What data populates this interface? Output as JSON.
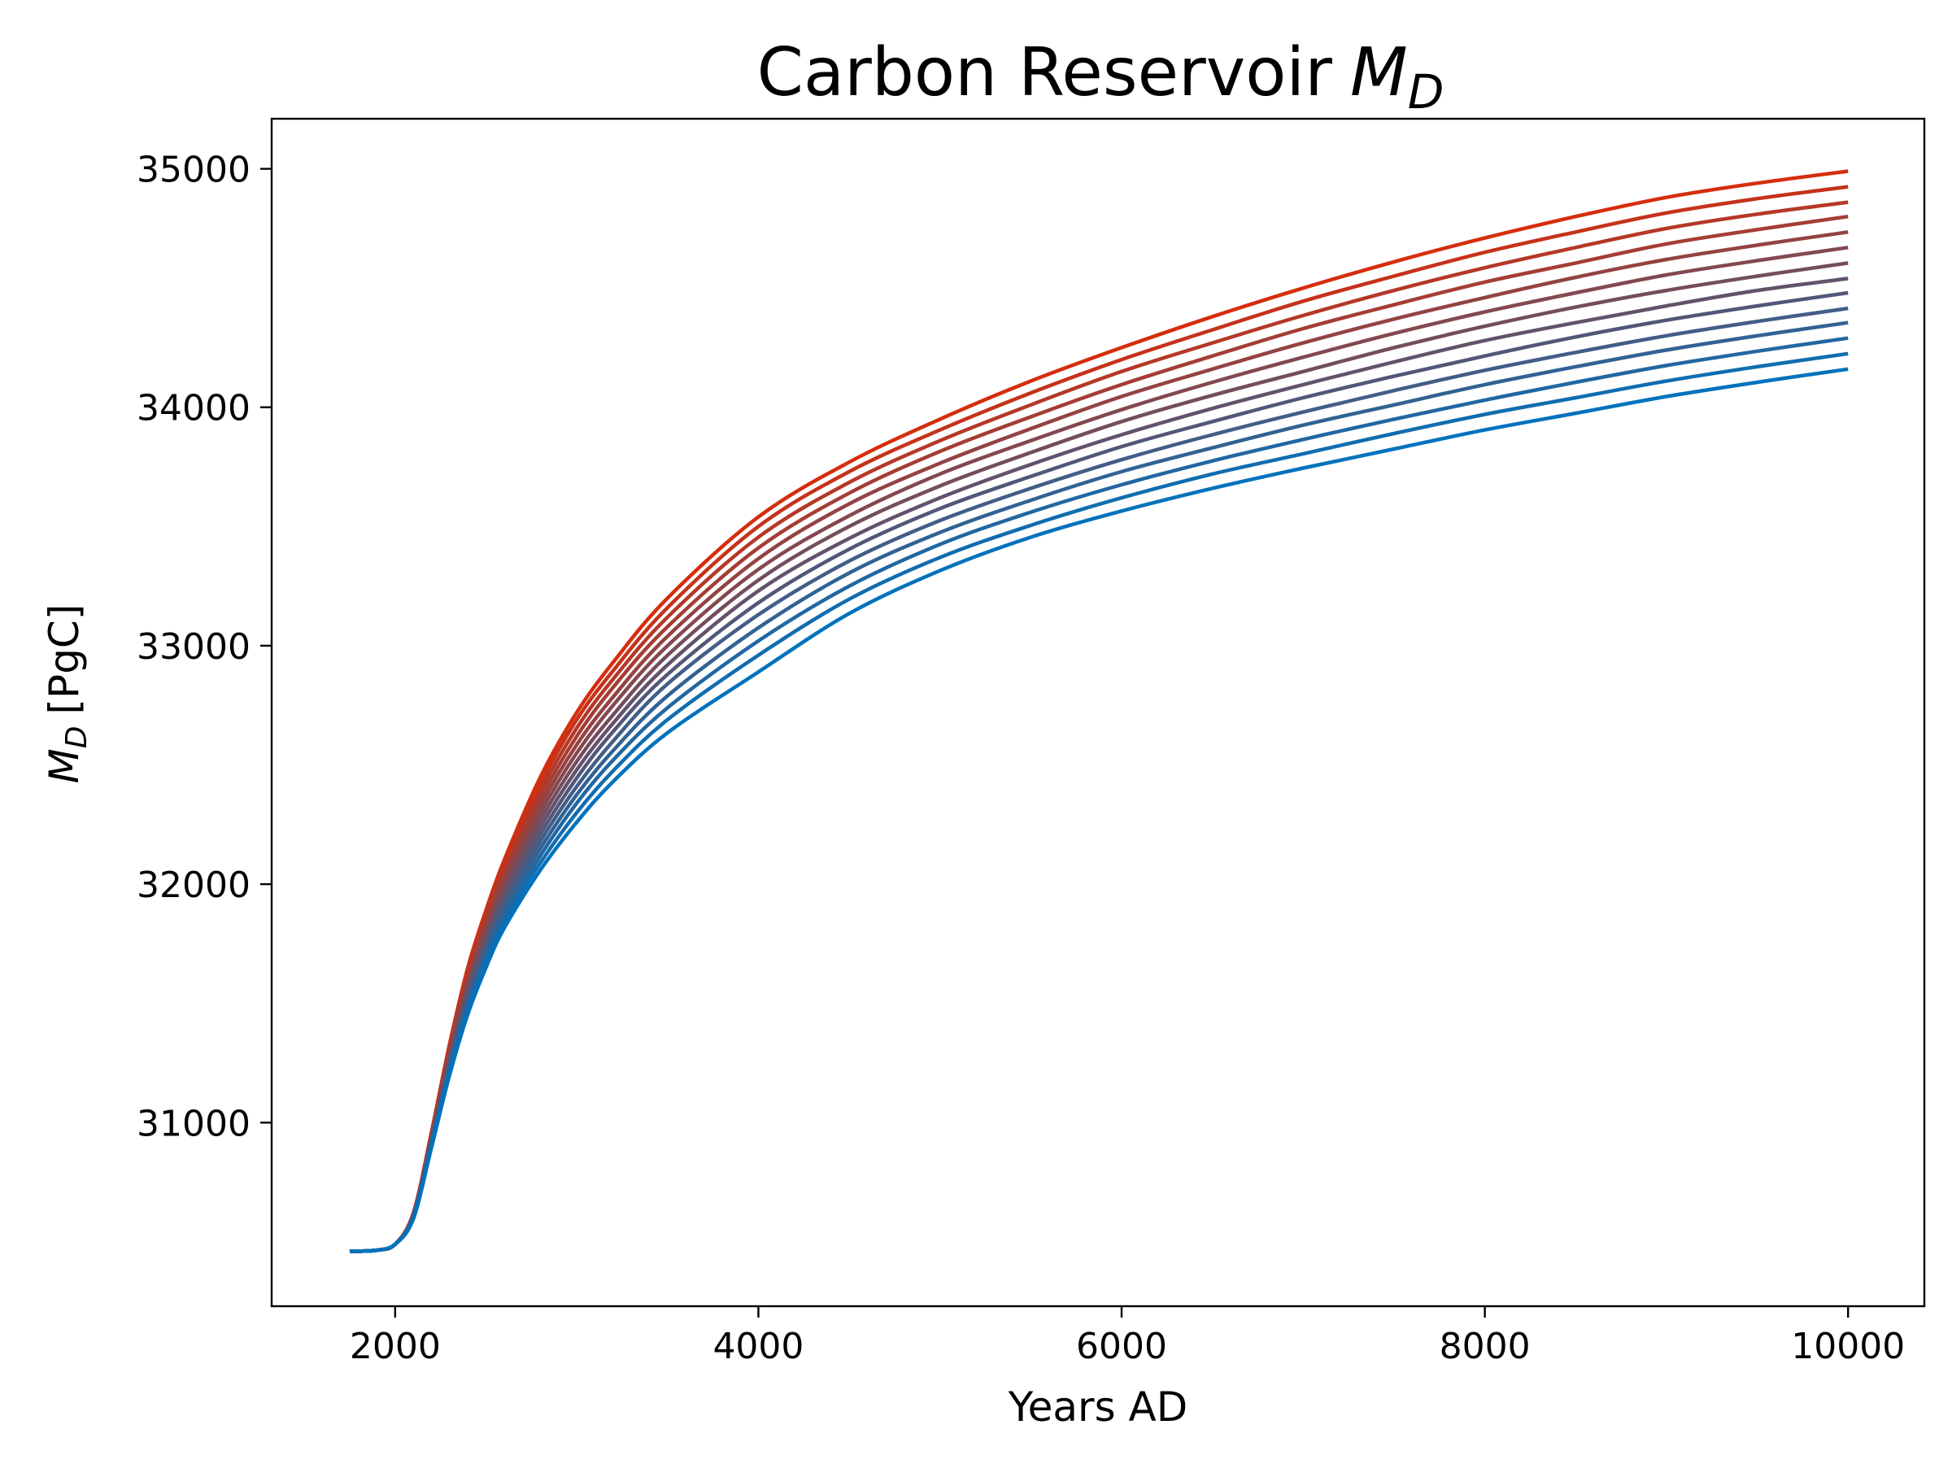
{
  "chart_data": {
    "type": "line",
    "title": "Carbon Reservoir",
    "title_symbol": "M",
    "title_symbol_sub": "D",
    "xlabel": "Years AD",
    "ylabel_symbol": "M",
    "ylabel_symbol_sub": "D",
    "ylabel_unit": "[PgC]",
    "xlim": [
      1320,
      10420
    ],
    "ylim": [
      30230,
      35210
    ],
    "xticks": [
      2000,
      4000,
      6000,
      8000,
      10000
    ],
    "xtick_labels": [
      "2000",
      "4000",
      "6000",
      "8000",
      "10000"
    ],
    "yticks": [
      31000,
      32000,
      33000,
      34000,
      35000
    ],
    "ytick_labels": [
      "31000",
      "32000",
      "33000",
      "34000",
      "35000"
    ],
    "grid": false,
    "legend": "none",
    "colors": {
      "start": "#d62d0c",
      "end": "#0072bd"
    },
    "x": [
      1750,
      1900,
      2000,
      2100,
      2200,
      2300,
      2400,
      2500,
      2600,
      2800,
      3000,
      3200,
      3500,
      4000,
      4500,
      5000,
      5500,
      6000,
      6500,
      7000,
      7500,
      8000,
      8500,
      9000,
      9500,
      10000
    ],
    "series": [
      {
        "values": [
          30460,
          30465,
          30490,
          30620,
          30960,
          31330,
          31650,
          31890,
          32100,
          32450,
          32720,
          32930,
          33200,
          33540,
          33770,
          33950,
          34110,
          34250,
          34380,
          34500,
          34610,
          34710,
          34800,
          34880,
          34940,
          34990
        ]
      },
      {
        "values": [
          30460,
          30465,
          30490,
          30620,
          30955,
          31320,
          31635,
          31875,
          32080,
          32420,
          32690,
          32895,
          33160,
          33500,
          33730,
          33905,
          34060,
          34200,
          34325,
          34445,
          34550,
          34650,
          34735,
          34815,
          34875,
          34925
        ]
      },
      {
        "values": [
          30460,
          30465,
          30490,
          30618,
          30950,
          31310,
          31620,
          31860,
          32060,
          32390,
          32655,
          32860,
          33120,
          33455,
          33685,
          33860,
          34010,
          34150,
          34270,
          34385,
          34490,
          34585,
          34670,
          34750,
          34810,
          34860
        ]
      },
      {
        "values": [
          30460,
          30465,
          30490,
          30616,
          30945,
          31300,
          31605,
          31840,
          32040,
          32360,
          32620,
          32825,
          33080,
          33410,
          33640,
          33815,
          33960,
          34095,
          34215,
          34330,
          34430,
          34525,
          34605,
          34685,
          34745,
          34800
        ]
      },
      {
        "values": [
          30460,
          30465,
          30490,
          30614,
          30940,
          31290,
          31590,
          31820,
          32015,
          32330,
          32585,
          32785,
          33040,
          33365,
          33595,
          33765,
          33910,
          34045,
          34160,
          34270,
          34370,
          34460,
          34545,
          34620,
          34680,
          34735
        ]
      },
      {
        "values": [
          30460,
          30465,
          30490,
          30612,
          30935,
          31280,
          31575,
          31800,
          31995,
          32300,
          32550,
          32750,
          33000,
          33320,
          33545,
          33720,
          33860,
          33990,
          34105,
          34210,
          34310,
          34400,
          34480,
          34555,
          34615,
          34670
        ]
      },
      {
        "values": [
          30460,
          30465,
          30490,
          30610,
          30930,
          31270,
          31560,
          31785,
          31975,
          32270,
          32515,
          32710,
          32960,
          33275,
          33500,
          33670,
          33810,
          33940,
          34050,
          34150,
          34250,
          34340,
          34420,
          34490,
          34550,
          34605
        ]
      },
      {
        "values": [
          30460,
          30465,
          30490,
          30608,
          30925,
          31260,
          31545,
          31765,
          31950,
          32240,
          32480,
          32675,
          32920,
          33230,
          33450,
          33620,
          33760,
          33885,
          33995,
          34095,
          34190,
          34280,
          34355,
          34425,
          34490,
          34540
        ]
      },
      {
        "values": [
          30460,
          30465,
          30490,
          30606,
          30920,
          31250,
          31530,
          31745,
          31930,
          32210,
          32445,
          32640,
          32880,
          33180,
          33405,
          33575,
          33710,
          33835,
          33940,
          34040,
          34130,
          34215,
          34295,
          34365,
          34425,
          34480
        ]
      },
      {
        "values": [
          30460,
          30465,
          30490,
          30604,
          30915,
          31240,
          31515,
          31725,
          31905,
          32180,
          32410,
          32600,
          32840,
          33130,
          33355,
          33525,
          33660,
          33780,
          33885,
          33980,
          34070,
          34155,
          34230,
          34300,
          34360,
          34415
        ]
      },
      {
        "values": [
          30460,
          30465,
          30490,
          30602,
          30910,
          31230,
          31500,
          31710,
          31885,
          32150,
          32375,
          32560,
          32790,
          33075,
          33305,
          33475,
          33610,
          33730,
          33830,
          33925,
          34010,
          34095,
          34170,
          34240,
          34300,
          34355
        ]
      },
      {
        "values": [
          30460,
          30465,
          30490,
          30600,
          30905,
          31220,
          31485,
          31690,
          31860,
          32120,
          32340,
          32520,
          32740,
          33020,
          33250,
          33425,
          33560,
          33675,
          33775,
          33865,
          33950,
          34030,
          34105,
          34175,
          34235,
          34290
        ]
      },
      {
        "values": [
          30460,
          30465,
          30490,
          30598,
          30900,
          31210,
          31470,
          31670,
          31840,
          32090,
          32300,
          32475,
          32690,
          32960,
          33195,
          33370,
          33505,
          33620,
          33720,
          33805,
          33890,
          33970,
          34040,
          34110,
          34170,
          34225
        ]
      },
      {
        "values": [
          30460,
          30465,
          30490,
          30596,
          30895,
          31200,
          31455,
          31650,
          31815,
          32060,
          32260,
          32430,
          32635,
          32890,
          33135,
          33315,
          33455,
          33565,
          33660,
          33745,
          33825,
          33905,
          33975,
          34045,
          34105,
          34160
        ]
      }
    ]
  }
}
